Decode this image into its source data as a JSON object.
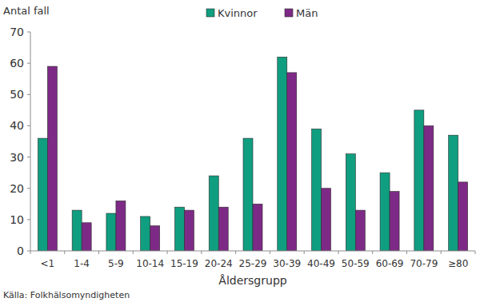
{
  "chart_data": {
    "type": "bar",
    "y_label": "Antal fall",
    "x_label": "Åldersgrupp",
    "source": "Källa: Folkhälsomyndigheten",
    "categories": [
      "<1",
      "1-4",
      "5-9",
      "10-14",
      "15-19",
      "20-24",
      "25-29",
      "30-39",
      "40-49",
      "50-59",
      "60-69",
      "70-79",
      "≥80"
    ],
    "series": [
      {
        "name": "Kvinnor",
        "color": "#109e80",
        "values": [
          36,
          13,
          12,
          11,
          14,
          24,
          36,
          62,
          39,
          31,
          25,
          45,
          37
        ]
      },
      {
        "name": "Män",
        "color": "#7d2a86",
        "values": [
          59,
          9,
          16,
          8,
          13,
          14,
          15,
          57,
          20,
          13,
          19,
          40,
          22
        ]
      }
    ],
    "ylim": [
      0,
      70
    ],
    "yticks": [
      0,
      10,
      20,
      30,
      40,
      50,
      60,
      70
    ],
    "grid": false,
    "legend": "top"
  }
}
